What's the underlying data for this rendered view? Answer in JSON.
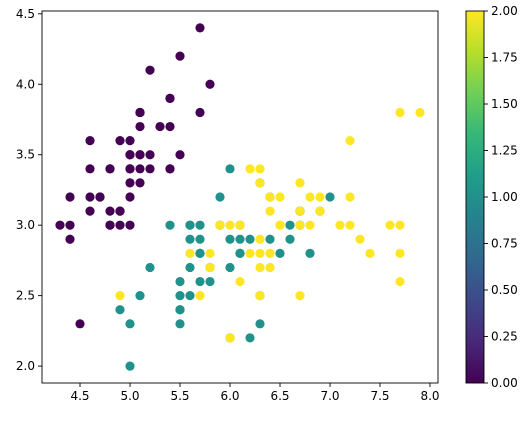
{
  "chart_data": {
    "type": "scatter",
    "title": "",
    "xlabel": "",
    "ylabel": "",
    "xlim": [
      4.12,
      8.08
    ],
    "ylim": [
      1.88,
      4.52
    ],
    "xticks": [
      4.5,
      5.0,
      5.5,
      6.0,
      6.5,
      7.0,
      7.5,
      8.0
    ],
    "xtick_labels": [
      "4.5",
      "5.0",
      "5.5",
      "6.0",
      "6.5",
      "7.0",
      "7.5",
      "8.0"
    ],
    "yticks": [
      2.0,
      2.5,
      3.0,
      3.5,
      4.0,
      4.5
    ],
    "ytick_labels": [
      "2.0",
      "2.5",
      "3.0",
      "3.5",
      "4.0",
      "4.5"
    ],
    "grid": false,
    "colormap": "viridis",
    "colorbar": {
      "range": [
        0.0,
        2.0
      ],
      "ticks": [
        0.0,
        0.25,
        0.5,
        0.75,
        1.0,
        1.25,
        1.5,
        1.75,
        2.0
      ],
      "tick_labels": [
        "0.00",
        "0.25",
        "0.50",
        "0.75",
        "1.00",
        "1.25",
        "1.50",
        "1.75",
        "2.00"
      ],
      "stops": [
        "#440154",
        "#482878",
        "#3e4989",
        "#31688e",
        "#26828e",
        "#1f9e89",
        "#35b779",
        "#6ece58",
        "#b5de2b",
        "#fde725"
      ]
    },
    "class_colors": [
      "#440154",
      "#21918c",
      "#fde725"
    ],
    "points": [
      [
        5.1,
        3.5,
        0
      ],
      [
        4.9,
        3.0,
        0
      ],
      [
        4.7,
        3.2,
        0
      ],
      [
        4.6,
        3.1,
        0
      ],
      [
        5.0,
        3.6,
        0
      ],
      [
        5.4,
        3.9,
        0
      ],
      [
        4.6,
        3.4,
        0
      ],
      [
        5.0,
        3.4,
        0
      ],
      [
        4.4,
        2.9,
        0
      ],
      [
        4.9,
        3.1,
        0
      ],
      [
        5.4,
        3.7,
        0
      ],
      [
        4.8,
        3.4,
        0
      ],
      [
        4.8,
        3.0,
        0
      ],
      [
        4.3,
        3.0,
        0
      ],
      [
        5.8,
        4.0,
        0
      ],
      [
        5.7,
        4.4,
        0
      ],
      [
        5.4,
        3.9,
        0
      ],
      [
        5.1,
        3.5,
        0
      ],
      [
        5.7,
        3.8,
        0
      ],
      [
        5.1,
        3.8,
        0
      ],
      [
        5.4,
        3.4,
        0
      ],
      [
        5.1,
        3.7,
        0
      ],
      [
        4.6,
        3.6,
        0
      ],
      [
        5.1,
        3.3,
        0
      ],
      [
        4.8,
        3.4,
        0
      ],
      [
        5.0,
        3.0,
        0
      ],
      [
        5.0,
        3.4,
        0
      ],
      [
        5.2,
        3.5,
        0
      ],
      [
        5.2,
        3.4,
        0
      ],
      [
        4.7,
        3.2,
        0
      ],
      [
        4.8,
        3.1,
        0
      ],
      [
        5.4,
        3.4,
        0
      ],
      [
        5.2,
        4.1,
        0
      ],
      [
        5.5,
        4.2,
        0
      ],
      [
        4.9,
        3.1,
        0
      ],
      [
        5.0,
        3.2,
        0
      ],
      [
        5.5,
        3.5,
        0
      ],
      [
        4.9,
        3.6,
        0
      ],
      [
        4.4,
        3.0,
        0
      ],
      [
        5.1,
        3.4,
        0
      ],
      [
        5.0,
        3.5,
        0
      ],
      [
        4.5,
        2.3,
        0
      ],
      [
        4.4,
        3.2,
        0
      ],
      [
        5.0,
        3.5,
        0
      ],
      [
        5.1,
        3.8,
        0
      ],
      [
        4.8,
        3.0,
        0
      ],
      [
        5.1,
        3.8,
        0
      ],
      [
        4.6,
        3.2,
        0
      ],
      [
        5.3,
        3.7,
        0
      ],
      [
        5.0,
        3.3,
        0
      ],
      [
        7.0,
        3.2,
        1
      ],
      [
        6.4,
        3.2,
        1
      ],
      [
        6.9,
        3.1,
        1
      ],
      [
        5.5,
        2.3,
        1
      ],
      [
        6.5,
        2.8,
        1
      ],
      [
        5.7,
        2.8,
        1
      ],
      [
        6.3,
        3.3,
        1
      ],
      [
        4.9,
        2.4,
        1
      ],
      [
        6.6,
        2.9,
        1
      ],
      [
        5.2,
        2.7,
        1
      ],
      [
        5.0,
        2.0,
        1
      ],
      [
        5.9,
        3.0,
        1
      ],
      [
        6.0,
        2.2,
        1
      ],
      [
        6.1,
        2.9,
        1
      ],
      [
        5.6,
        2.9,
        1
      ],
      [
        6.7,
        3.1,
        1
      ],
      [
        5.6,
        3.0,
        1
      ],
      [
        5.8,
        2.7,
        1
      ],
      [
        6.2,
        2.2,
        1
      ],
      [
        5.6,
        2.5,
        1
      ],
      [
        5.9,
        3.2,
        1
      ],
      [
        6.1,
        2.8,
        1
      ],
      [
        6.3,
        2.5,
        1
      ],
      [
        6.1,
        2.8,
        1
      ],
      [
        6.4,
        2.9,
        1
      ],
      [
        6.6,
        3.0,
        1
      ],
      [
        6.8,
        2.8,
        1
      ],
      [
        6.7,
        3.0,
        1
      ],
      [
        6.0,
        2.9,
        1
      ],
      [
        5.7,
        2.6,
        1
      ],
      [
        5.5,
        2.4,
        1
      ],
      [
        5.5,
        2.4,
        1
      ],
      [
        5.8,
        2.7,
        1
      ],
      [
        6.0,
        2.7,
        1
      ],
      [
        5.4,
        3.0,
        1
      ],
      [
        6.0,
        3.4,
        1
      ],
      [
        6.7,
        3.1,
        1
      ],
      [
        6.3,
        2.3,
        1
      ],
      [
        5.6,
        3.0,
        1
      ],
      [
        5.5,
        2.5,
        1
      ],
      [
        5.5,
        2.6,
        1
      ],
      [
        6.1,
        3.0,
        1
      ],
      [
        5.8,
        2.6,
        1
      ],
      [
        5.0,
        2.3,
        1
      ],
      [
        5.6,
        2.7,
        1
      ],
      [
        5.7,
        3.0,
        1
      ],
      [
        5.7,
        2.9,
        1
      ],
      [
        6.2,
        2.9,
        1
      ],
      [
        5.1,
        2.5,
        1
      ],
      [
        5.7,
        2.8,
        1
      ],
      [
        6.3,
        3.3,
        2
      ],
      [
        5.8,
        2.7,
        2
      ],
      [
        7.1,
        3.0,
        2
      ],
      [
        6.3,
        2.9,
        2
      ],
      [
        6.5,
        3.0,
        2
      ],
      [
        7.6,
        3.0,
        2
      ],
      [
        4.9,
        2.5,
        2
      ],
      [
        7.3,
        2.9,
        2
      ],
      [
        6.7,
        2.5,
        2
      ],
      [
        7.2,
        3.6,
        2
      ],
      [
        6.5,
        3.2,
        2
      ],
      [
        6.4,
        2.7,
        2
      ],
      [
        6.8,
        3.0,
        2
      ],
      [
        5.7,
        2.5,
        2
      ],
      [
        5.8,
        2.8,
        2
      ],
      [
        6.4,
        3.2,
        2
      ],
      [
        6.5,
        3.0,
        2
      ],
      [
        7.7,
        3.8,
        2
      ],
      [
        7.7,
        2.6,
        2
      ],
      [
        6.0,
        2.2,
        2
      ],
      [
        6.9,
        3.2,
        2
      ],
      [
        5.6,
        2.8,
        2
      ],
      [
        7.7,
        2.8,
        2
      ],
      [
        6.3,
        2.7,
        2
      ],
      [
        6.7,
        3.3,
        2
      ],
      [
        7.2,
        3.2,
        2
      ],
      [
        6.2,
        2.8,
        2
      ],
      [
        6.1,
        3.0,
        2
      ],
      [
        6.4,
        2.8,
        2
      ],
      [
        7.2,
        3.0,
        2
      ],
      [
        7.4,
        2.8,
        2
      ],
      [
        7.9,
        3.8,
        2
      ],
      [
        6.4,
        2.8,
        2
      ],
      [
        6.3,
        2.8,
        2
      ],
      [
        6.1,
        2.6,
        2
      ],
      [
        7.7,
        3.0,
        2
      ],
      [
        6.3,
        3.4,
        2
      ],
      [
        6.4,
        3.1,
        2
      ],
      [
        6.0,
        3.0,
        2
      ],
      [
        6.9,
        3.1,
        2
      ],
      [
        6.7,
        3.1,
        2
      ],
      [
        6.9,
        3.1,
        2
      ],
      [
        5.8,
        2.7,
        2
      ],
      [
        6.8,
        3.2,
        2
      ],
      [
        6.7,
        3.3,
        2
      ],
      [
        6.7,
        3.0,
        2
      ],
      [
        6.3,
        2.5,
        2
      ],
      [
        6.5,
        3.0,
        2
      ],
      [
        6.2,
        3.4,
        2
      ],
      [
        5.9,
        3.0,
        2
      ]
    ]
  }
}
